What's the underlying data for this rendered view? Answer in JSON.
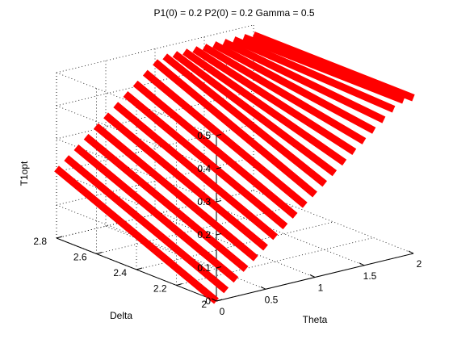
{
  "chart_data": {
    "type": "line",
    "title": "P1(0) = 0.2 P2(0) = 0.2 Gamma = 0.5",
    "xlabel": "Theta",
    "ylabel": "Delta",
    "zlabel": "T1opt",
    "xlim": [
      0,
      2
    ],
    "ylim": [
      2,
      2.8
    ],
    "zlim": [
      0,
      0.5
    ],
    "x_ticks": [
      "0",
      "0.5",
      "1",
      "1.5",
      "2"
    ],
    "y_ticks": [
      "2",
      "2.2",
      "2.4",
      "2.6",
      "2.8"
    ],
    "z_ticks": [
      "0",
      "0.1",
      "0.2",
      "0.3",
      "0.4",
      "0.5"
    ],
    "grid": true,
    "line_color": "#ff0000",
    "note": "",
    "series": [
      {
        "x": [
          0.0,
          0.0
        ],
        "y": [
          2.0,
          2.8
        ],
        "z": [
          0.0,
          0.21
        ]
      },
      {
        "x": [
          0.1,
          0.1
        ],
        "y": [
          2.0,
          2.8
        ],
        "z": [
          0.025,
          0.235
        ]
      },
      {
        "x": [
          0.2,
          0.2
        ],
        "y": [
          2.0,
          2.8
        ],
        "z": [
          0.05,
          0.26
        ]
      },
      {
        "x": [
          0.3,
          0.3
        ],
        "y": [
          2.0,
          2.8
        ],
        "z": [
          0.075,
          0.285
        ]
      },
      {
        "x": [
          0.4,
          0.4
        ],
        "y": [
          2.0,
          2.8
        ],
        "z": [
          0.1,
          0.31
        ]
      },
      {
        "x": [
          0.5,
          0.5
        ],
        "y": [
          2.0,
          2.8
        ],
        "z": [
          0.125,
          0.335
        ]
      },
      {
        "x": [
          0.6,
          0.6
        ],
        "y": [
          2.0,
          2.8
        ],
        "z": [
          0.15,
          0.36
        ]
      },
      {
        "x": [
          0.7,
          0.7
        ],
        "y": [
          2.0,
          2.8
        ],
        "z": [
          0.175,
          0.385
        ]
      },
      {
        "x": [
          0.8,
          0.8
        ],
        "y": [
          2.0,
          2.8
        ],
        "z": [
          0.2,
          0.41
        ]
      },
      {
        "x": [
          0.9,
          0.9
        ],
        "y": [
          2.0,
          2.8
        ],
        "z": [
          0.225,
          0.435
        ]
      },
      {
        "x": [
          1.0,
          1.0
        ],
        "y": [
          2.0,
          2.8
        ],
        "z": [
          0.25,
          0.46
        ]
      },
      {
        "x": [
          1.1,
          1.1
        ],
        "y": [
          2.0,
          2.8
        ],
        "z": [
          0.275,
          0.47
        ]
      },
      {
        "x": [
          1.2,
          1.2
        ],
        "y": [
          2.0,
          2.8
        ],
        "z": [
          0.3,
          0.47
        ]
      },
      {
        "x": [
          1.3,
          1.3
        ],
        "y": [
          2.0,
          2.8
        ],
        "z": [
          0.325,
          0.47
        ]
      },
      {
        "x": [
          1.4,
          1.4
        ],
        "y": [
          2.0,
          2.8
        ],
        "z": [
          0.35,
          0.47
        ]
      },
      {
        "x": [
          1.5,
          1.5
        ],
        "y": [
          2.0,
          2.8
        ],
        "z": [
          0.375,
          0.47
        ]
      },
      {
        "x": [
          1.6,
          1.6
        ],
        "y": [
          2.0,
          2.8
        ],
        "z": [
          0.4,
          0.47
        ]
      },
      {
        "x": [
          1.7,
          1.7
        ],
        "y": [
          2.0,
          2.8
        ],
        "z": [
          0.425,
          0.47
        ]
      },
      {
        "x": [
          1.8,
          1.8
        ],
        "y": [
          2.0,
          2.8
        ],
        "z": [
          0.45,
          0.47
        ]
      },
      {
        "x": [
          1.9,
          1.9
        ],
        "y": [
          2.0,
          2.8
        ],
        "z": [
          0.47,
          0.47
        ]
      },
      {
        "x": [
          2.0,
          2.0
        ],
        "y": [
          2.0,
          2.8
        ],
        "z": [
          0.47,
          0.47
        ]
      }
    ]
  }
}
